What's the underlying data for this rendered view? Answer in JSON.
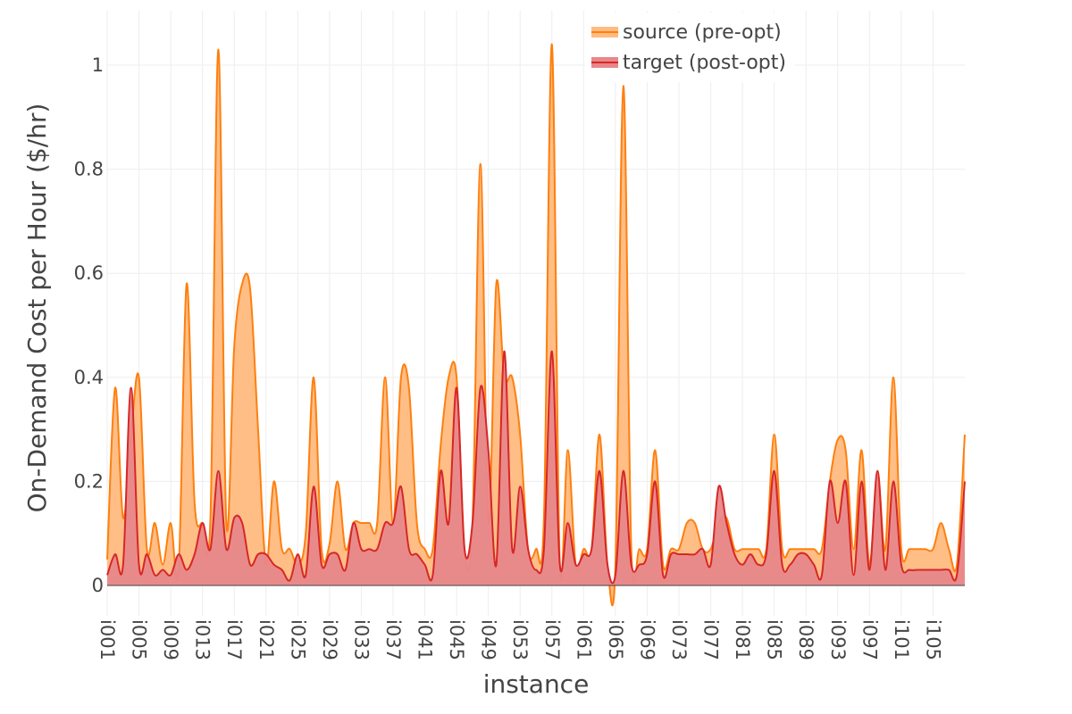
{
  "chart_data": {
    "type": "area",
    "xlabel": "instance",
    "ylabel": "On-Demand Cost per Hour ($/hr)",
    "ylim": [
      -0.03,
      1.1
    ],
    "yticks": [
      0,
      0.2,
      0.4,
      0.6,
      0.8,
      1
    ],
    "ytick_labels": [
      "0",
      "0.2",
      "0.4",
      "0.6",
      "0.8",
      "1"
    ],
    "grid": true,
    "legend_position": "top-right",
    "curve": "spline",
    "x_ticks": [
      "i001",
      "i005",
      "i009",
      "i013",
      "i017",
      "i021",
      "i025",
      "i029",
      "i033",
      "i037",
      "i041",
      "i045",
      "i049",
      "i053",
      "i057",
      "i061",
      "i065",
      "i069",
      "i073",
      "i077",
      "i081",
      "i085",
      "i089",
      "i093",
      "i097",
      "i101",
      "i105"
    ],
    "x": [
      "i001",
      "i002",
      "i003",
      "i004",
      "i005",
      "i006",
      "i007",
      "i008",
      "i009",
      "i010",
      "i011",
      "i012",
      "i013",
      "i014",
      "i015",
      "i016",
      "i017",
      "i018",
      "i019",
      "i020",
      "i021",
      "i022",
      "i023",
      "i024",
      "i025",
      "i026",
      "i027",
      "i028",
      "i029",
      "i030",
      "i031",
      "i032",
      "i033",
      "i034",
      "i035",
      "i036",
      "i037",
      "i038",
      "i039",
      "i040",
      "i041",
      "i042",
      "i043",
      "i044",
      "i045",
      "i046",
      "i047",
      "i048",
      "i049",
      "i050",
      "i051",
      "i052",
      "i053",
      "i054",
      "i055",
      "i056",
      "i057",
      "i058",
      "i059",
      "i060",
      "i061",
      "i062",
      "i063",
      "i064",
      "i065",
      "i066",
      "i067",
      "i068",
      "i069",
      "i070",
      "i071",
      "i072",
      "i073",
      "i074",
      "i075",
      "i076",
      "i077",
      "i078",
      "i079",
      "i080",
      "i081",
      "i082",
      "i083",
      "i084",
      "i085",
      "i086",
      "i087",
      "i088",
      "i089",
      "i090",
      "i091",
      "i092",
      "i093",
      "i094",
      "i095",
      "i096",
      "i097",
      "i098",
      "i099",
      "i100",
      "i101",
      "i102",
      "i103",
      "i104",
      "i105",
      "i106",
      "i107",
      "i108",
      "i109"
    ],
    "series": [
      {
        "name": "source (pre-opt)",
        "line_color": "#ff7f0e",
        "fill_color": "#ffbb80",
        "values": [
          0.05,
          0.38,
          0.13,
          0.29,
          0.4,
          0.07,
          0.12,
          0.04,
          0.12,
          0.03,
          0.58,
          0.16,
          0.12,
          0.13,
          1.03,
          0.12,
          0.46,
          0.58,
          0.57,
          0.3,
          0.04,
          0.2,
          0.07,
          0.07,
          0.04,
          0.1,
          0.4,
          0.07,
          0.08,
          0.2,
          0.07,
          0.12,
          0.12,
          0.12,
          0.12,
          0.4,
          0.12,
          0.4,
          0.38,
          0.12,
          0.07,
          0.07,
          0.27,
          0.4,
          0.4,
          0.07,
          0.12,
          0.81,
          0.12,
          0.58,
          0.4,
          0.4,
          0.29,
          0.07,
          0.07,
          0.13,
          1.04,
          0.04,
          0.26,
          0.04,
          0.07,
          0.07,
          0.29,
          0.04,
          0.04,
          0.96,
          0.07,
          0.07,
          0.07,
          0.26,
          0.04,
          0.07,
          0.07,
          0.12,
          0.12,
          0.07,
          0.07,
          0.12,
          0.13,
          0.07,
          0.07,
          0.07,
          0.07,
          0.07,
          0.29,
          0.07,
          0.07,
          0.07,
          0.07,
          0.07,
          0.07,
          0.2,
          0.28,
          0.26,
          0.07,
          0.26,
          0.04,
          0.22,
          0.07,
          0.4,
          0.07,
          0.07,
          0.07,
          0.07,
          0.07,
          0.12,
          0.07,
          0.04,
          0.29
        ]
      },
      {
        "name": "target (post-opt)",
        "line_color": "#d62728",
        "fill_color": "#e8878a",
        "values": [
          0.02,
          0.06,
          0.04,
          0.38,
          0.04,
          0.06,
          0.02,
          0.03,
          0.02,
          0.06,
          0.03,
          0.06,
          0.12,
          0.07,
          0.22,
          0.07,
          0.13,
          0.12,
          0.04,
          0.06,
          0.06,
          0.04,
          0.03,
          0.01,
          0.06,
          0.02,
          0.19,
          0.04,
          0.06,
          0.06,
          0.03,
          0.12,
          0.07,
          0.07,
          0.07,
          0.12,
          0.12,
          0.19,
          0.07,
          0.06,
          0.04,
          0.02,
          0.22,
          0.12,
          0.38,
          0.07,
          0.12,
          0.38,
          0.26,
          0.04,
          0.45,
          0.07,
          0.19,
          0.07,
          0.03,
          0.07,
          0.45,
          0.04,
          0.12,
          0.04,
          0.06,
          0.07,
          0.22,
          0.04,
          0.02,
          0.22,
          0.04,
          0.04,
          0.06,
          0.2,
          0.02,
          0.06,
          0.06,
          0.06,
          0.06,
          0.07,
          0.04,
          0.19,
          0.12,
          0.06,
          0.04,
          0.06,
          0.04,
          0.06,
          0.22,
          0.04,
          0.04,
          0.06,
          0.06,
          0.04,
          0.02,
          0.2,
          0.12,
          0.2,
          0.02,
          0.2,
          0.03,
          0.22,
          0.03,
          0.2,
          0.04,
          0.03,
          0.03,
          0.03,
          0.03,
          0.03,
          0.03,
          0.02,
          0.2
        ]
      }
    ]
  }
}
